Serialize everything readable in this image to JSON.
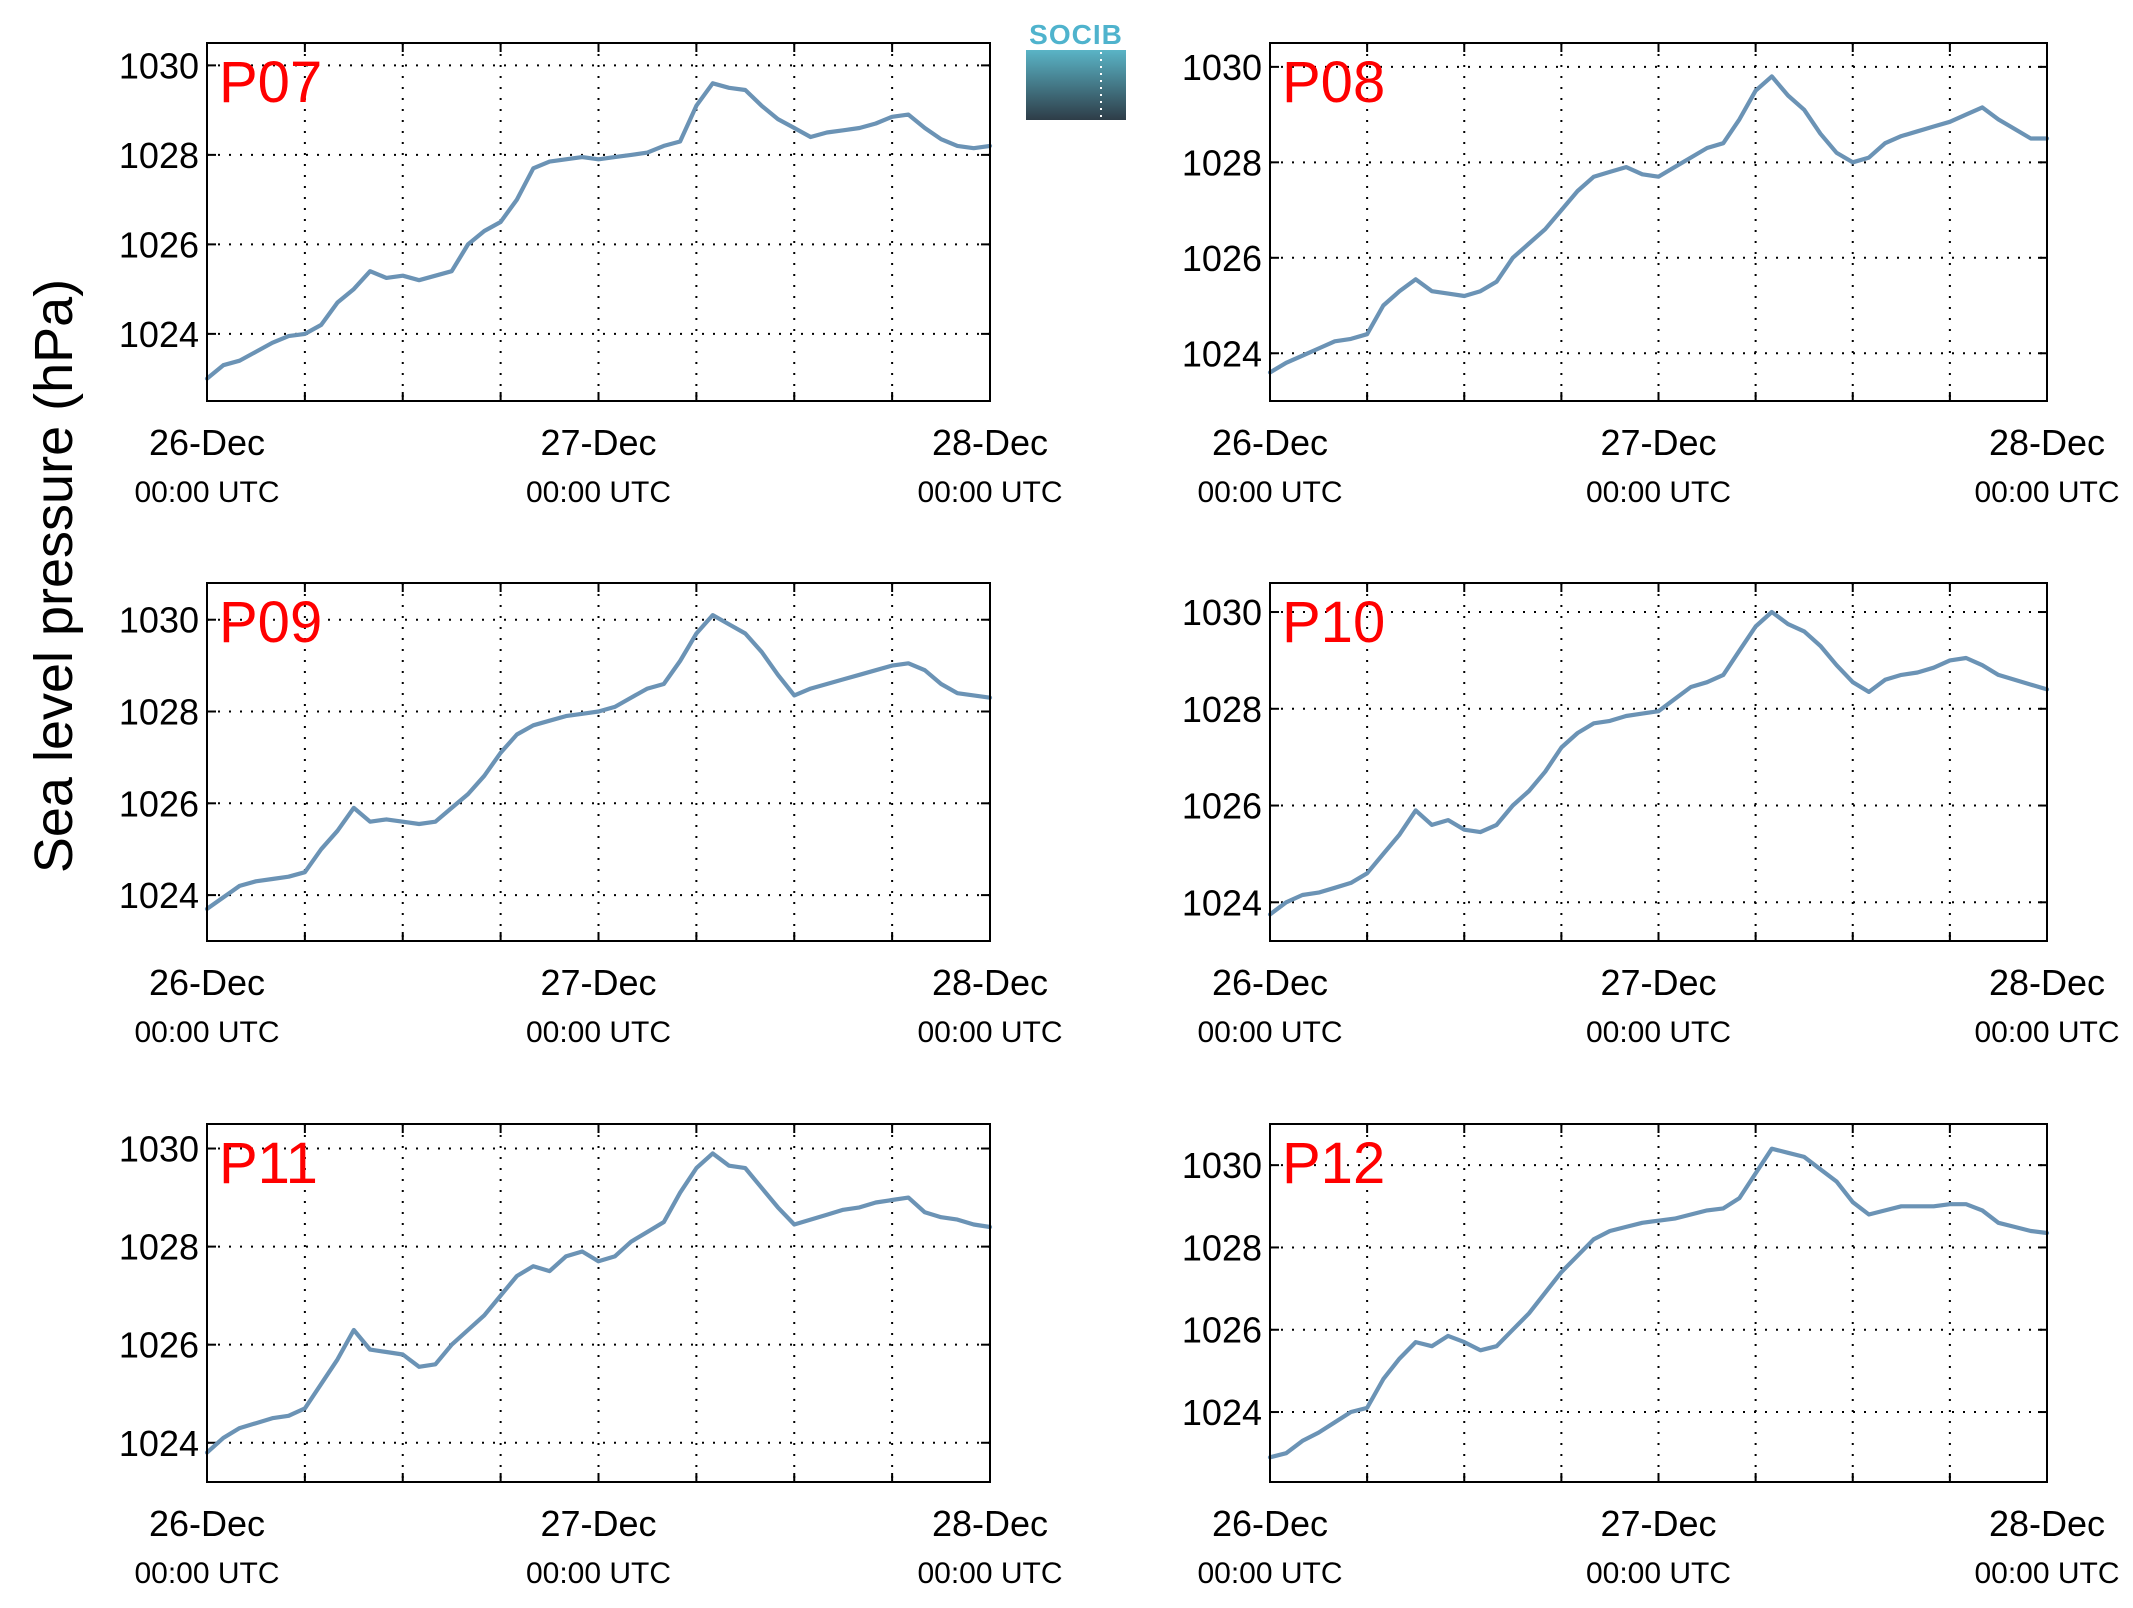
{
  "figure": {
    "ylabel": "Sea level pressure (hPa)",
    "logo": {
      "text": "SOCIB",
      "top_color": "#5ab4c6",
      "bottom_color": "#2e3d48",
      "accent_color": "#4fb3cd"
    },
    "colors": {
      "series": "#6b93b5",
      "panel_label": "#ff0000"
    }
  },
  "chart_data": [
    {
      "type": "line",
      "panel_label": "P07",
      "xlim": [
        0,
        48
      ],
      "ylim": [
        1022.5,
        1030.5
      ],
      "yticks": [
        1024,
        1026,
        1028,
        1030
      ],
      "xtick_labels": [
        {
          "value": 0,
          "date": "26-Dec",
          "time": "00:00 UTC"
        },
        {
          "value": 24,
          "date": "27-Dec",
          "time": "00:00 UTC"
        },
        {
          "value": 48,
          "date": "28-Dec",
          "time": "00:00 UTC"
        }
      ],
      "xgrid": [
        6,
        12,
        18,
        24,
        30,
        36,
        42
      ],
      "grid": true,
      "series": [
        {
          "x": [
            0,
            1,
            2,
            3,
            4,
            5,
            6,
            7,
            8,
            9,
            10,
            11,
            12,
            13,
            14,
            15,
            16,
            17,
            18,
            19,
            20,
            21,
            22,
            23,
            24,
            25,
            26,
            27,
            28,
            29,
            30,
            31,
            32,
            33,
            34,
            35,
            36,
            37,
            38,
            39,
            40,
            41,
            42,
            43,
            44,
            45,
            46,
            47,
            48
          ],
          "y": [
            1023.0,
            1023.3,
            1023.4,
            1023.6,
            1023.8,
            1023.95,
            1024.0,
            1024.2,
            1024.7,
            1025.0,
            1025.4,
            1025.25,
            1025.3,
            1025.2,
            1025.3,
            1025.4,
            1026.0,
            1026.3,
            1026.5,
            1027.0,
            1027.7,
            1027.85,
            1027.9,
            1027.95,
            1027.9,
            1027.95,
            1028.0,
            1028.05,
            1028.2,
            1028.3,
            1029.1,
            1029.6,
            1029.5,
            1029.45,
            1029.1,
            1028.8,
            1028.6,
            1028.4,
            1028.5,
            1028.55,
            1028.6,
            1028.7,
            1028.85,
            1028.9,
            1028.6,
            1028.35,
            1028.2,
            1028.15,
            1028.2
          ]
        }
      ]
    },
    {
      "type": "line",
      "panel_label": "P08",
      "xlim": [
        0,
        48
      ],
      "ylim": [
        1023,
        1030.5
      ],
      "yticks": [
        1024,
        1026,
        1028,
        1030
      ],
      "xtick_labels": [
        {
          "value": 0,
          "date": "26-Dec",
          "time": "00:00 UTC"
        },
        {
          "value": 24,
          "date": "27-Dec",
          "time": "00:00 UTC"
        },
        {
          "value": 48,
          "date": "28-Dec",
          "time": "00:00 UTC"
        }
      ],
      "xgrid": [
        6,
        12,
        18,
        24,
        30,
        36,
        42
      ],
      "grid": true,
      "series": [
        {
          "x": [
            0,
            1,
            2,
            3,
            4,
            5,
            6,
            7,
            8,
            9,
            10,
            11,
            12,
            13,
            14,
            15,
            16,
            17,
            18,
            19,
            20,
            21,
            22,
            23,
            24,
            25,
            26,
            27,
            28,
            29,
            30,
            31,
            32,
            33,
            34,
            35,
            36,
            37,
            38,
            39,
            40,
            41,
            42,
            43,
            44,
            45,
            46,
            47,
            48
          ],
          "y": [
            1023.6,
            1023.8,
            1023.95,
            1024.1,
            1024.25,
            1024.3,
            1024.4,
            1025.0,
            1025.3,
            1025.55,
            1025.3,
            1025.25,
            1025.2,
            1025.3,
            1025.5,
            1026.0,
            1026.3,
            1026.6,
            1027.0,
            1027.4,
            1027.7,
            1027.8,
            1027.9,
            1027.75,
            1027.7,
            1027.9,
            1028.1,
            1028.3,
            1028.4,
            1028.9,
            1029.5,
            1029.8,
            1029.4,
            1029.1,
            1028.6,
            1028.2,
            1028.0,
            1028.1,
            1028.4,
            1028.55,
            1028.65,
            1028.75,
            1028.85,
            1029.0,
            1029.15,
            1028.9,
            1028.7,
            1028.5,
            1028.5
          ]
        }
      ]
    },
    {
      "type": "line",
      "panel_label": "P09",
      "xlim": [
        0,
        48
      ],
      "ylim": [
        1023,
        1030.8
      ],
      "yticks": [
        1024,
        1026,
        1028,
        1030
      ],
      "xtick_labels": [
        {
          "value": 0,
          "date": "26-Dec",
          "time": "00:00 UTC"
        },
        {
          "value": 24,
          "date": "27-Dec",
          "time": "00:00 UTC"
        },
        {
          "value": 48,
          "date": "28-Dec",
          "time": "00:00 UTC"
        }
      ],
      "xgrid": [
        6,
        12,
        18,
        24,
        30,
        36,
        42
      ],
      "grid": true,
      "series": [
        {
          "x": [
            0,
            1,
            2,
            3,
            4,
            5,
            6,
            7,
            8,
            9,
            10,
            11,
            12,
            13,
            14,
            15,
            16,
            17,
            18,
            19,
            20,
            21,
            22,
            23,
            24,
            25,
            26,
            27,
            28,
            29,
            30,
            31,
            32,
            33,
            34,
            35,
            36,
            37,
            38,
            39,
            40,
            41,
            42,
            43,
            44,
            45,
            46,
            47,
            48
          ],
          "y": [
            1023.7,
            1023.95,
            1024.2,
            1024.3,
            1024.35,
            1024.4,
            1024.5,
            1025.0,
            1025.4,
            1025.9,
            1025.6,
            1025.65,
            1025.6,
            1025.55,
            1025.6,
            1025.9,
            1026.2,
            1026.6,
            1027.1,
            1027.5,
            1027.7,
            1027.8,
            1027.9,
            1027.95,
            1028.0,
            1028.1,
            1028.3,
            1028.5,
            1028.6,
            1029.1,
            1029.7,
            1030.1,
            1029.9,
            1029.7,
            1029.3,
            1028.8,
            1028.35,
            1028.5,
            1028.6,
            1028.7,
            1028.8,
            1028.9,
            1029.0,
            1029.05,
            1028.9,
            1028.6,
            1028.4,
            1028.35,
            1028.3
          ]
        }
      ]
    },
    {
      "type": "line",
      "panel_label": "P10",
      "xlim": [
        0,
        48
      ],
      "ylim": [
        1023.2,
        1030.6
      ],
      "yticks": [
        1024,
        1026,
        1028,
        1030
      ],
      "xtick_labels": [
        {
          "value": 0,
          "date": "26-Dec",
          "time": "00:00 UTC"
        },
        {
          "value": 24,
          "date": "27-Dec",
          "time": "00:00 UTC"
        },
        {
          "value": 48,
          "date": "28-Dec",
          "time": "00:00 UTC"
        }
      ],
      "xgrid": [
        6,
        12,
        18,
        24,
        30,
        36,
        42
      ],
      "grid": true,
      "series": [
        {
          "x": [
            0,
            1,
            2,
            3,
            4,
            5,
            6,
            7,
            8,
            9,
            10,
            11,
            12,
            13,
            14,
            15,
            16,
            17,
            18,
            19,
            20,
            21,
            22,
            23,
            24,
            25,
            26,
            27,
            28,
            29,
            30,
            31,
            32,
            33,
            34,
            35,
            36,
            37,
            38,
            39,
            40,
            41,
            42,
            43,
            44,
            45,
            46,
            47,
            48
          ],
          "y": [
            1023.75,
            1024.0,
            1024.15,
            1024.2,
            1024.3,
            1024.4,
            1024.6,
            1025.0,
            1025.4,
            1025.9,
            1025.6,
            1025.7,
            1025.5,
            1025.45,
            1025.6,
            1026.0,
            1026.3,
            1026.7,
            1027.2,
            1027.5,
            1027.7,
            1027.75,
            1027.85,
            1027.9,
            1027.95,
            1028.2,
            1028.45,
            1028.55,
            1028.7,
            1029.2,
            1029.7,
            1030.0,
            1029.75,
            1029.6,
            1029.3,
            1028.9,
            1028.55,
            1028.35,
            1028.6,
            1028.7,
            1028.75,
            1028.85,
            1029.0,
            1029.05,
            1028.9,
            1028.7,
            1028.6,
            1028.5,
            1028.4
          ]
        }
      ]
    },
    {
      "type": "line",
      "panel_label": "P11",
      "xlim": [
        0,
        48
      ],
      "ylim": [
        1023.2,
        1030.5
      ],
      "yticks": [
        1024,
        1026,
        1028,
        1030
      ],
      "xtick_labels": [
        {
          "value": 0,
          "date": "26-Dec",
          "time": "00:00 UTC"
        },
        {
          "value": 24,
          "date": "27-Dec",
          "time": "00:00 UTC"
        },
        {
          "value": 48,
          "date": "28-Dec",
          "time": "00:00 UTC"
        }
      ],
      "xgrid": [
        6,
        12,
        18,
        24,
        30,
        36,
        42
      ],
      "grid": true,
      "series": [
        {
          "x": [
            0,
            1,
            2,
            3,
            4,
            5,
            6,
            7,
            8,
            9,
            10,
            11,
            12,
            13,
            14,
            15,
            16,
            17,
            18,
            19,
            20,
            21,
            22,
            23,
            24,
            25,
            26,
            27,
            28,
            29,
            30,
            31,
            32,
            33,
            34,
            35,
            36,
            37,
            38,
            39,
            40,
            41,
            42,
            43,
            44,
            45,
            46,
            47,
            48
          ],
          "y": [
            1023.8,
            1024.1,
            1024.3,
            1024.4,
            1024.5,
            1024.55,
            1024.7,
            1025.2,
            1025.7,
            1026.3,
            1025.9,
            1025.85,
            1025.8,
            1025.55,
            1025.6,
            1026.0,
            1026.3,
            1026.6,
            1027.0,
            1027.4,
            1027.6,
            1027.5,
            1027.8,
            1027.9,
            1027.7,
            1027.8,
            1028.1,
            1028.3,
            1028.5,
            1029.1,
            1029.6,
            1029.9,
            1029.65,
            1029.6,
            1029.2,
            1028.8,
            1028.45,
            1028.55,
            1028.65,
            1028.75,
            1028.8,
            1028.9,
            1028.95,
            1029.0,
            1028.7,
            1028.6,
            1028.55,
            1028.45,
            1028.4
          ]
        }
      ]
    },
    {
      "type": "line",
      "panel_label": "P12",
      "xlim": [
        0,
        48
      ],
      "ylim": [
        1022.3,
        1031.0
      ],
      "yticks": [
        1024,
        1026,
        1028,
        1030
      ],
      "xtick_labels": [
        {
          "value": 0,
          "date": "26-Dec",
          "time": "00:00 UTC"
        },
        {
          "value": 24,
          "date": "27-Dec",
          "time": "00:00 UTC"
        },
        {
          "value": 48,
          "date": "28-Dec",
          "time": "00:00 UTC"
        }
      ],
      "xgrid": [
        6,
        12,
        18,
        24,
        30,
        36,
        42
      ],
      "grid": true,
      "series": [
        {
          "x": [
            0,
            1,
            2,
            3,
            4,
            5,
            6,
            7,
            8,
            9,
            10,
            11,
            12,
            13,
            14,
            15,
            16,
            17,
            18,
            19,
            20,
            21,
            22,
            23,
            24,
            25,
            26,
            27,
            28,
            29,
            30,
            31,
            32,
            33,
            34,
            35,
            36,
            37,
            38,
            39,
            40,
            41,
            42,
            43,
            44,
            45,
            46,
            47,
            48
          ],
          "y": [
            1022.9,
            1023.0,
            1023.3,
            1023.5,
            1023.75,
            1024.0,
            1024.1,
            1024.8,
            1025.3,
            1025.7,
            1025.6,
            1025.85,
            1025.7,
            1025.5,
            1025.6,
            1026.0,
            1026.4,
            1026.9,
            1027.4,
            1027.8,
            1028.2,
            1028.4,
            1028.5,
            1028.6,
            1028.65,
            1028.7,
            1028.8,
            1028.9,
            1028.95,
            1029.2,
            1029.8,
            1030.4,
            1030.3,
            1030.2,
            1029.9,
            1029.6,
            1029.1,
            1028.8,
            1028.9,
            1029.0,
            1029.0,
            1029.0,
            1029.05,
            1029.05,
            1028.9,
            1028.6,
            1028.5,
            1028.4,
            1028.35
          ]
        }
      ]
    }
  ]
}
